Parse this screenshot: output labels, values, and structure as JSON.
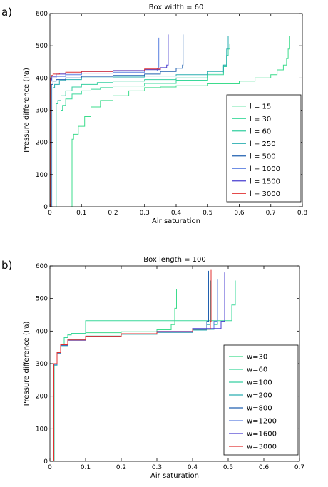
{
  "chart_data": [
    {
      "panel_label": "a)",
      "type": "line",
      "title": "Box width = 60",
      "xlabel": "Air saturation",
      "ylabel": "Pressure difference (Pa)",
      "xlim": [
        0,
        0.8
      ],
      "ylim": [
        0,
        600
      ],
      "xticks": [
        0,
        0.1,
        0.2,
        0.3,
        0.4,
        0.5,
        0.6,
        0.7,
        0.8
      ],
      "xtick_labels": [
        "0",
        "0.1",
        "0.2",
        "0.3",
        "0.4",
        "0.5",
        "0.6",
        "0.7",
        "0.8"
      ],
      "yticks": [
        0,
        100,
        200,
        300,
        400,
        500,
        600
      ],
      "ytick_labels": [
        "0",
        "100",
        "200",
        "300",
        "400",
        "500",
        "600"
      ],
      "grid": false,
      "legend_position": "lower-right",
      "series": [
        {
          "name": "l = 15",
          "color": "#3ddc8c",
          "x": [
            0.07,
            0.07,
            0.075,
            0.09,
            0.11,
            0.13,
            0.16,
            0.2,
            0.25,
            0.3,
            0.35,
            0.4,
            0.5,
            0.6,
            0.65,
            0.7,
            0.72,
            0.74,
            0.75,
            0.755,
            0.76
          ],
          "y": [
            0,
            210,
            225,
            250,
            280,
            310,
            330,
            345,
            360,
            370,
            372,
            376,
            382,
            390,
            400,
            410,
            425,
            440,
            460,
            490,
            530
          ]
        },
        {
          "name": "l = 30",
          "color": "#3ad89a",
          "x": [
            0.035,
            0.035,
            0.04,
            0.05,
            0.07,
            0.1,
            0.13,
            0.16,
            0.2,
            0.3,
            0.4,
            0.5,
            0.55,
            0.56,
            0.565,
            0.57
          ],
          "y": [
            0,
            300,
            315,
            335,
            350,
            360,
            365,
            370,
            375,
            383,
            393,
            410,
            440,
            470,
            490,
            505
          ]
        },
        {
          "name": "l = 60",
          "color": "#35cfa0",
          "x": [
            0.02,
            0.02,
            0.025,
            0.035,
            0.05,
            0.07,
            0.1,
            0.15,
            0.2,
            0.3,
            0.4,
            0.5,
            0.55,
            0.56,
            0.565
          ],
          "y": [
            0,
            320,
            330,
            345,
            360,
            372,
            380,
            386,
            390,
            395,
            400,
            415,
            435,
            470,
            525
          ]
        },
        {
          "name": "l = 250",
          "color": "#2aaeb0",
          "x": [
            0.01,
            0.01,
            0.015,
            0.03,
            0.05,
            0.1,
            0.2,
            0.3,
            0.4,
            0.5,
            0.55,
            0.56,
            0.565
          ],
          "y": [
            0,
            370,
            380,
            392,
            395,
            400,
            403,
            406,
            410,
            420,
            440,
            490,
            530
          ]
        },
        {
          "name": "l = 500",
          "color": "#2060b0",
          "x": [
            0.005,
            0.005,
            0.01,
            0.02,
            0.05,
            0.1,
            0.2,
            0.3,
            0.35,
            0.4,
            0.42,
            0.422
          ],
          "y": [
            0,
            380,
            390,
            395,
            400,
            405,
            408,
            412,
            420,
            430,
            440,
            535
          ]
        },
        {
          "name": "l = 1000",
          "color": "#5a7ee0",
          "x": [
            0.003,
            0.003,
            0.006,
            0.02,
            0.05,
            0.1,
            0.2,
            0.3,
            0.34,
            0.345
          ],
          "y": [
            0,
            390,
            400,
            405,
            410,
            415,
            418,
            422,
            430,
            525
          ]
        },
        {
          "name": "l = 1500",
          "color": "#4a3fd0",
          "x": [
            0.002,
            0.002,
            0.005,
            0.02,
            0.05,
            0.1,
            0.2,
            0.3,
            0.35,
            0.37,
            0.375
          ],
          "y": [
            0,
            395,
            405,
            412,
            415,
            420,
            423,
            426,
            432,
            440,
            535
          ]
        },
        {
          "name": "l = 3000",
          "color": "#e03030",
          "x": [
            0.002,
            0.002,
            0.004,
            0.01,
            0.03,
            0.05,
            0.1,
            0.2,
            0.3,
            0.35
          ],
          "y": [
            0,
            400,
            408,
            412,
            415,
            418,
            420,
            422,
            428,
            432
          ]
        }
      ]
    },
    {
      "panel_label": "b)",
      "type": "line",
      "title": "Box length = 100",
      "xlabel": "Air saturation",
      "ylabel": "Pressure difference (Pa)",
      "xlim": [
        0,
        0.7
      ],
      "ylim": [
        0,
        600
      ],
      "xticks": [
        0,
        0.1,
        0.2,
        0.3,
        0.4,
        0.5,
        0.6,
        0.7
      ],
      "xtick_labels": [
        "0",
        "0.1",
        "0.2",
        "0.3",
        "0.4",
        "0.5",
        "0.6",
        "0.7"
      ],
      "yticks": [
        0,
        100,
        200,
        300,
        400,
        500,
        600
      ],
      "ytick_labels": [
        "0",
        "100",
        "200",
        "300",
        "400",
        "500",
        "600"
      ],
      "grid": false,
      "legend_position": "lower-right",
      "series": [
        {
          "name": "w=30",
          "color": "#3ddc8c",
          "x": [
            0.012,
            0.012,
            0.02,
            0.03,
            0.04,
            0.05,
            0.06,
            0.1,
            0.2,
            0.3,
            0.34,
            0.35,
            0.355
          ],
          "y": [
            0,
            300,
            330,
            360,
            380,
            390,
            392,
            395,
            398,
            404,
            420,
            470,
            530
          ]
        },
        {
          "name": "w=60",
          "color": "#3ad89a",
          "x": [
            0.012,
            0.012,
            0.02,
            0.03,
            0.04,
            0.05,
            0.06,
            0.1,
            0.2,
            0.3,
            0.4,
            0.5,
            0.51,
            0.52
          ],
          "y": [
            0,
            300,
            330,
            360,
            380,
            388,
            393,
            432,
            432,
            432,
            432,
            432,
            480,
            555
          ]
        },
        {
          "name": "w=100",
          "color": "#35cfa0",
          "x": [
            0.012,
            0.012,
            0.02,
            0.03,
            0.05,
            0.1,
            0.2,
            0.3,
            0.4,
            0.46,
            0.47
          ],
          "y": [
            0,
            300,
            335,
            360,
            375,
            385,
            392,
            398,
            405,
            420,
            560
          ]
        },
        {
          "name": "w=200",
          "color": "#2aaeb0",
          "x": [
            0.011,
            0.011,
            0.02,
            0.03,
            0.05,
            0.1,
            0.2,
            0.3,
            0.4,
            0.44,
            0.45
          ],
          "y": [
            0,
            295,
            330,
            355,
            372,
            383,
            390,
            396,
            403,
            420,
            555
          ]
        },
        {
          "name": "w=800",
          "color": "#2060b0",
          "x": [
            0.011,
            0.011,
            0.02,
            0.03,
            0.05,
            0.1,
            0.2,
            0.3,
            0.4,
            0.44,
            0.445
          ],
          "y": [
            0,
            300,
            335,
            358,
            373,
            384,
            391,
            397,
            405,
            430,
            585
          ]
        },
        {
          "name": "w=1200",
          "color": "#5a7ee0",
          "x": [
            0.011,
            0.011,
            0.02,
            0.03,
            0.05,
            0.1,
            0.2,
            0.3,
            0.4,
            0.46,
            0.47
          ],
          "y": [
            0,
            298,
            333,
            357,
            372,
            383,
            391,
            398,
            406,
            430,
            560
          ]
        },
        {
          "name": "w=1600",
          "color": "#4a3fd0",
          "x": [
            0.011,
            0.011,
            0.02,
            0.03,
            0.05,
            0.1,
            0.2,
            0.3,
            0.4,
            0.48,
            0.49
          ],
          "y": [
            0,
            298,
            333,
            357,
            372,
            383,
            392,
            399,
            408,
            430,
            580
          ]
        },
        {
          "name": "w=3000",
          "color": "#e03030",
          "x": [
            0.011,
            0.011,
            0.02,
            0.03,
            0.05,
            0.1,
            0.2,
            0.3,
            0.4,
            0.45,
            0.452
          ],
          "y": [
            0,
            300,
            334,
            358,
            373,
            384,
            392,
            398,
            406,
            430,
            590
          ]
        }
      ]
    }
  ]
}
